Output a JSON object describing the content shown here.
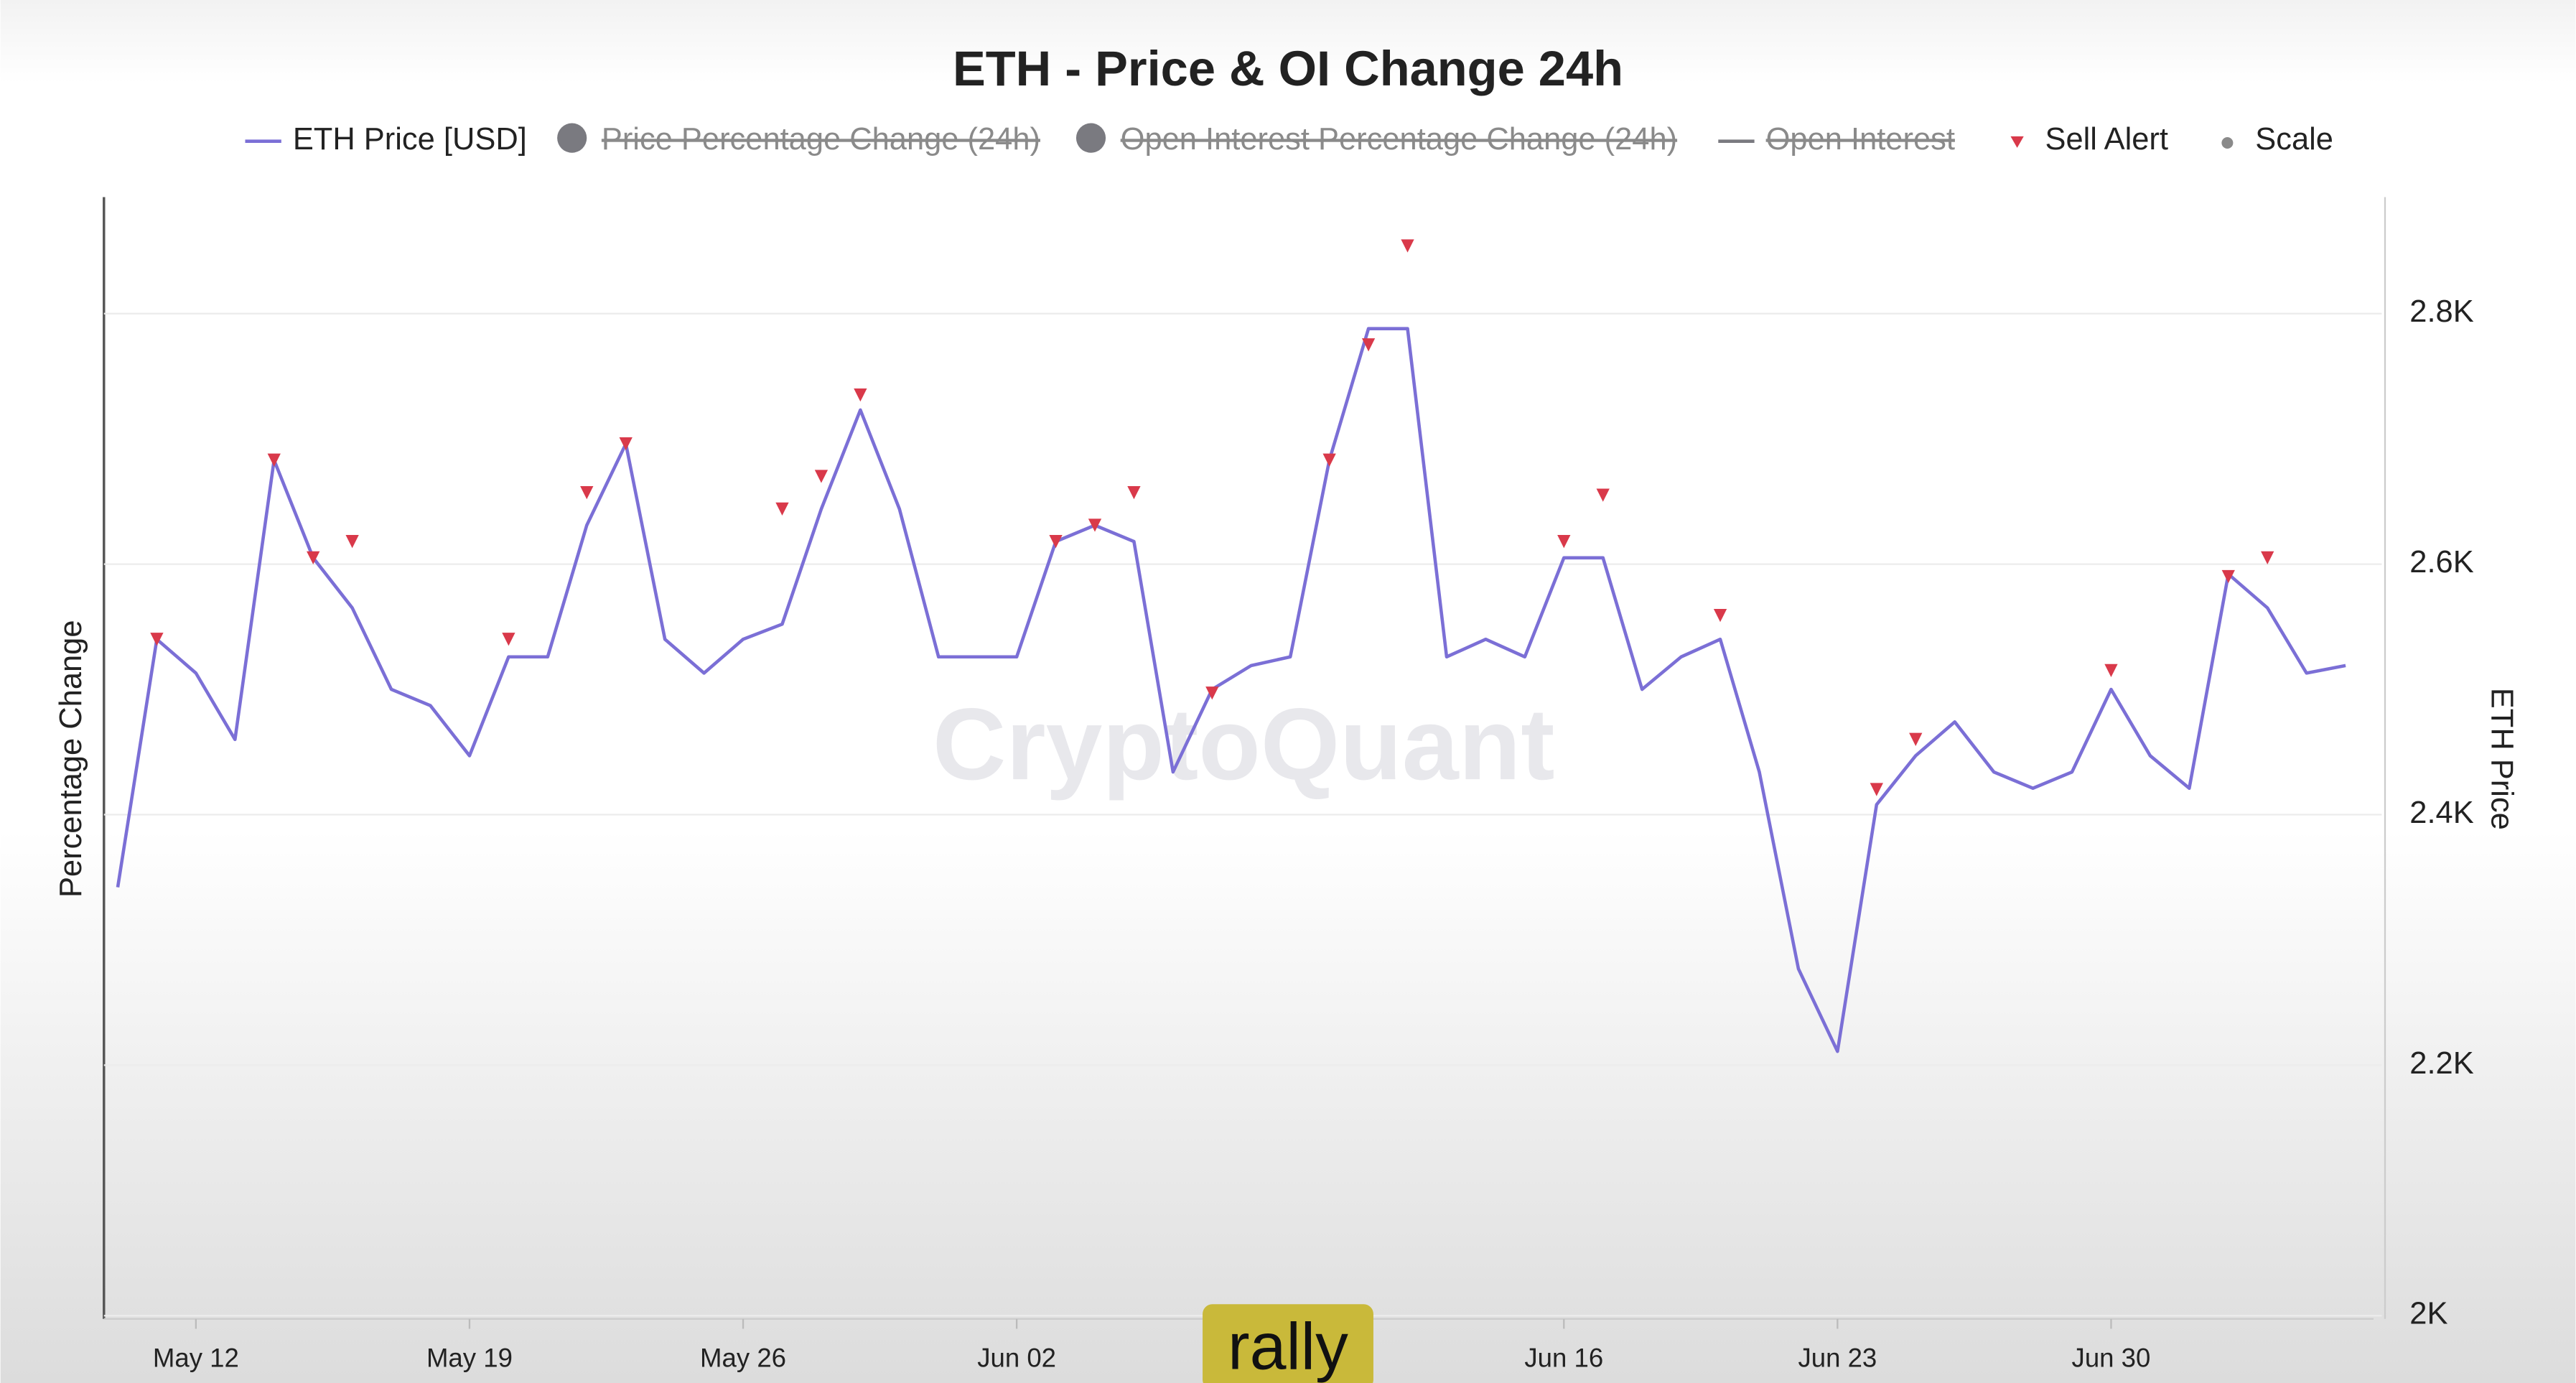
{
  "chart_data": {
    "type": "line",
    "title": "ETH - Price & OI Change 24h",
    "watermark": "CryptoQuant",
    "overlay_text": "rally",
    "y_label": "Percentage Change",
    "y2_label": "ETH Price",
    "categories": [
      "May 10",
      "May 11",
      "May 12",
      "May 13",
      "May 14",
      "May 15",
      "May 16",
      "May 17",
      "May 18",
      "May 19",
      "May 20",
      "May 21",
      "May 22",
      "May 23",
      "May 24",
      "May 25",
      "May 26",
      "May 27",
      "May 28",
      "May 29",
      "May 30",
      "May 31",
      "Jun 01",
      "Jun 02",
      "Jun 03",
      "Jun 04",
      "Jun 05",
      "Jun 06",
      "Jun 07",
      "Jun 08",
      "Jun 09",
      "Jun 10",
      "Jun 11",
      "Jun 12",
      "Jun 13",
      "Jun 14",
      "Jun 15",
      "Jun 16",
      "Jun 17",
      "Jun 18",
      "Jun 19",
      "Jun 20",
      "Jun 21",
      "Jun 22",
      "Jun 23",
      "Jun 24",
      "Jun 25",
      "Jun 26",
      "Jun 27",
      "Jun 28",
      "Jun 29",
      "Jun 30",
      "Jul 01",
      "Jul 02",
      "Jul 03",
      "Jul 04",
      "Jul 05",
      "Jul 06"
    ],
    "xticks": [
      "May 12",
      "May 19",
      "May 26",
      "Jun 02",
      "Jun 16",
      "Jun 23",
      "Jun 30"
    ],
    "y2lim": [
      2000,
      2893
    ],
    "y2ticks": [
      {
        "value": 2000,
        "label": "2K"
      },
      {
        "value": 2200,
        "label": "2.2K"
      },
      {
        "value": 2400,
        "label": "2.4K"
      },
      {
        "value": 2600,
        "label": "2.6K"
      },
      {
        "value": 2800,
        "label": "2.8K"
      }
    ],
    "grid": true,
    "series": [
      {
        "name": "ETH Price [USD]",
        "color": "#7b6fd6",
        "marker": "line",
        "axis": "y2",
        "values": [
          2342,
          2540,
          2513,
          2460,
          2683,
          2605,
          2565,
          2500,
          2487,
          2447,
          2526,
          2526,
          2631,
          2696,
          2540,
          2513,
          2540,
          2552,
          2644,
          2723,
          2644,
          2526,
          2526,
          2526,
          2618,
          2631,
          2618,
          2434,
          2500,
          2519,
          2526,
          2683,
          2788,
          2788,
          2526,
          2540,
          2526,
          2605,
          2605,
          2500,
          2526,
          2540,
          2434,
          2277,
          2211,
          2408,
          2447,
          2474,
          2434,
          2421,
          2434,
          2500,
          2447,
          2421,
          2592,
          2565,
          2513,
          2519
        ]
      },
      {
        "name": "Price Percentage Change (24h)",
        "color": "#7a7a80",
        "marker": "circle",
        "hidden": true
      },
      {
        "name": "Open Interest Percentage Change (24h)",
        "color": "#7a7a80",
        "marker": "circle",
        "hidden": true
      },
      {
        "name": "Open Interest",
        "color": "#7a7a80",
        "marker": "line",
        "hidden": true
      },
      {
        "name": "Sell Alert",
        "color": "#d9394a",
        "marker": "triangle",
        "axis": "y2",
        "values": [
          null,
          2540,
          null,
          null,
          2683,
          2605,
          2618,
          null,
          null,
          null,
          2540,
          null,
          2657,
          2696,
          null,
          null,
          null,
          2644,
          2670,
          2735,
          null,
          null,
          null,
          null,
          2618,
          2631,
          2657,
          null,
          2497,
          null,
          null,
          2683,
          2775,
          2854,
          null,
          null,
          null,
          2618,
          2655,
          null,
          null,
          2559,
          null,
          null,
          null,
          2420,
          2460,
          null,
          null,
          null,
          null,
          2515,
          null,
          null,
          2590,
          2605,
          null,
          null
        ]
      },
      {
        "name": "Scale",
        "color": "#8a8a8a",
        "marker": "dot",
        "hidden": false
      }
    ]
  }
}
